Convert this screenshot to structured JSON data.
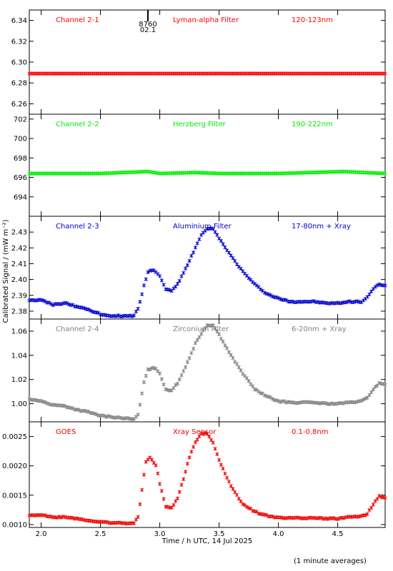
{
  "chart_data": {
    "type": "scatter",
    "xlabel": "Time / h UTC, 14 Jul 2025",
    "ylabel": "Calibrated Signal / (mW m⁻²)",
    "xlim": [
      1.9,
      4.9
    ],
    "xticks": [
      "2.0",
      "2.5",
      "3.0",
      "3.5",
      "4.0",
      "4.5"
    ],
    "footnote": "(1 minute averages)",
    "marker": {
      "label_top": "8760",
      "label_bottom": "02.1",
      "x": 2.9
    },
    "panels": [
      {
        "channel": "Channel 2-1",
        "filter": "Lyman-alpha Filter",
        "band": "120-123nm",
        "color": "#ff0000",
        "ylim": [
          6.25,
          6.35
        ],
        "yticks": [
          "6.26",
          "6.28",
          "6.30",
          "6.32",
          "6.34"
        ],
        "points": [
          [
            1.9,
            6.289
          ],
          [
            2.5,
            6.289
          ],
          [
            3.0,
            6.289
          ],
          [
            3.5,
            6.289
          ],
          [
            4.0,
            6.289
          ],
          [
            4.5,
            6.289
          ],
          [
            4.9,
            6.289
          ]
        ]
      },
      {
        "channel": "Channel 2-2",
        "filter": "Herzberg Filter",
        "band": "190-222nm",
        "color": "#00ee00",
        "ylim": [
          692.0,
          702.5
        ],
        "yticks": [
          "694",
          "696",
          "698",
          "700",
          "702"
        ],
        "points": [
          [
            1.9,
            696.4
          ],
          [
            2.5,
            696.4
          ],
          [
            2.9,
            696.6
          ],
          [
            3.0,
            696.4
          ],
          [
            3.3,
            696.5
          ],
          [
            3.5,
            696.4
          ],
          [
            4.0,
            696.4
          ],
          [
            4.55,
            696.6
          ],
          [
            4.9,
            696.4
          ]
        ]
      },
      {
        "channel": "Channel 2-3",
        "filter": "Aluminium Filter",
        "band": "17-80nm + Xray",
        "color": "#0000cc",
        "ylim": [
          2.375,
          2.44
        ],
        "yticks": [
          "2.38",
          "2.39",
          "2.40",
          "2.41",
          "2.42",
          "2.43"
        ],
        "points": [
          [
            1.9,
            2.387
          ],
          [
            2.0,
            2.387
          ],
          [
            2.1,
            2.384
          ],
          [
            2.2,
            2.385
          ],
          [
            2.3,
            2.383
          ],
          [
            2.4,
            2.381
          ],
          [
            2.5,
            2.378
          ],
          [
            2.6,
            2.377
          ],
          [
            2.7,
            2.377
          ],
          [
            2.78,
            2.377
          ],
          [
            2.82,
            2.382
          ],
          [
            2.87,
            2.397
          ],
          [
            2.9,
            2.405
          ],
          [
            2.95,
            2.406
          ],
          [
            3.0,
            2.402
          ],
          [
            3.05,
            2.394
          ],
          [
            3.1,
            2.393
          ],
          [
            3.15,
            2.397
          ],
          [
            3.2,
            2.404
          ],
          [
            3.25,
            2.412
          ],
          [
            3.3,
            2.42
          ],
          [
            3.35,
            2.428
          ],
          [
            3.4,
            2.432
          ],
          [
            3.45,
            2.432
          ],
          [
            3.5,
            2.426
          ],
          [
            3.6,
            2.415
          ],
          [
            3.7,
            2.405
          ],
          [
            3.8,
            2.397
          ],
          [
            3.9,
            2.391
          ],
          [
            4.0,
            2.388
          ],
          [
            4.1,
            2.386
          ],
          [
            4.2,
            2.386
          ],
          [
            4.3,
            2.386
          ],
          [
            4.4,
            2.385
          ],
          [
            4.5,
            2.385
          ],
          [
            4.6,
            2.386
          ],
          [
            4.7,
            2.386
          ],
          [
            4.75,
            2.389
          ],
          [
            4.8,
            2.394
          ],
          [
            4.85,
            2.397
          ],
          [
            4.9,
            2.396
          ]
        ]
      },
      {
        "channel": "Channel 2-4",
        "filter": "Zirconium Filter",
        "band": "6-20nm + Xray",
        "color": "#808080",
        "ylim": [
          0.985,
          1.07
        ],
        "yticks": [
          "1.00",
          "1.02",
          "1.04",
          "1.06"
        ],
        "points": [
          [
            1.9,
            1.004
          ],
          [
            2.0,
            1.002
          ],
          [
            2.1,
            0.999
          ],
          [
            2.2,
            0.998
          ],
          [
            2.3,
            0.995
          ],
          [
            2.4,
            0.993
          ],
          [
            2.5,
            0.99
          ],
          [
            2.6,
            0.989
          ],
          [
            2.7,
            0.988
          ],
          [
            2.78,
            0.987
          ],
          [
            2.82,
            0.991
          ],
          [
            2.87,
            1.02
          ],
          [
            2.9,
            1.028
          ],
          [
            2.95,
            1.03
          ],
          [
            3.0,
            1.025
          ],
          [
            3.05,
            1.012
          ],
          [
            3.1,
            1.011
          ],
          [
            3.15,
            1.017
          ],
          [
            3.2,
            1.027
          ],
          [
            3.25,
            1.038
          ],
          [
            3.3,
            1.05
          ],
          [
            3.35,
            1.058
          ],
          [
            3.4,
            1.065
          ],
          [
            3.45,
            1.065
          ],
          [
            3.5,
            1.057
          ],
          [
            3.6,
            1.04
          ],
          [
            3.7,
            1.025
          ],
          [
            3.8,
            1.012
          ],
          [
            3.9,
            1.006
          ],
          [
            4.0,
            1.002
          ],
          [
            4.1,
            1.001
          ],
          [
            4.2,
            1.001
          ],
          [
            4.3,
            1.001
          ],
          [
            4.4,
            1.0
          ],
          [
            4.5,
            1.0
          ],
          [
            4.6,
            1.001
          ],
          [
            4.7,
            1.002
          ],
          [
            4.75,
            1.005
          ],
          [
            4.8,
            1.012
          ],
          [
            4.85,
            1.017
          ],
          [
            4.9,
            1.016
          ]
        ]
      },
      {
        "channel": "GOES",
        "filter": "Xray Sensor",
        "band": "0.1-0.8nm",
        "color": "#ee0000",
        "ylim": [
          0.00095,
          0.00275
        ],
        "yticks": [
          "0.0010",
          "0.0015",
          "0.0020",
          "0.0025"
        ],
        "points": [
          [
            1.9,
            0.00115
          ],
          [
            2.0,
            0.00117
          ],
          [
            2.1,
            0.00112
          ],
          [
            2.2,
            0.00113
          ],
          [
            2.3,
            0.0011
          ],
          [
            2.4,
            0.00107
          ],
          [
            2.5,
            0.00104
          ],
          [
            2.6,
            0.00103
          ],
          [
            2.7,
            0.00102
          ],
          [
            2.78,
            0.00102
          ],
          [
            2.82,
            0.00115
          ],
          [
            2.85,
            0.0016
          ],
          [
            2.88,
            0.00205
          ],
          [
            2.92,
            0.00215
          ],
          [
            2.97,
            0.002
          ],
          [
            3.0,
            0.0017
          ],
          [
            3.05,
            0.0013
          ],
          [
            3.1,
            0.00128
          ],
          [
            3.15,
            0.00145
          ],
          [
            3.2,
            0.00178
          ],
          [
            3.25,
            0.00215
          ],
          [
            3.3,
            0.0024
          ],
          [
            3.35,
            0.00255
          ],
          [
            3.4,
            0.00255
          ],
          [
            3.45,
            0.0024
          ],
          [
            3.5,
            0.0021
          ],
          [
            3.6,
            0.00165
          ],
          [
            3.7,
            0.00135
          ],
          [
            3.8,
            0.00122
          ],
          [
            3.9,
            0.00115
          ],
          [
            4.0,
            0.00112
          ],
          [
            4.1,
            0.00111
          ],
          [
            4.2,
            0.00111
          ],
          [
            4.3,
            0.00111
          ],
          [
            4.4,
            0.0011
          ],
          [
            4.5,
            0.0011
          ],
          [
            4.6,
            0.00113
          ],
          [
            4.7,
            0.00114
          ],
          [
            4.75,
            0.00118
          ],
          [
            4.8,
            0.00135
          ],
          [
            4.85,
            0.00148
          ],
          [
            4.9,
            0.00145
          ]
        ]
      }
    ]
  }
}
